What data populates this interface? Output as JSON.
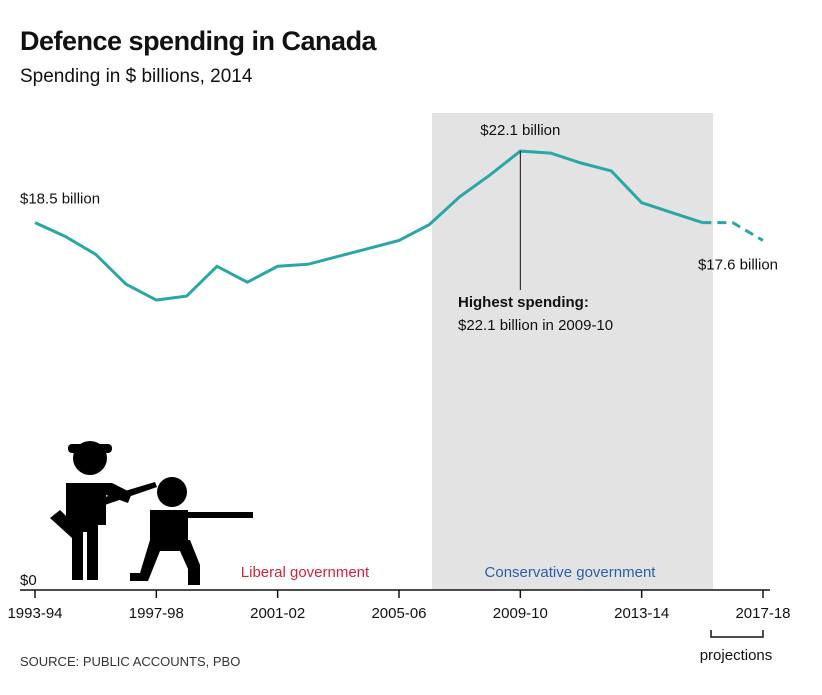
{
  "chart_data": {
    "type": "line",
    "title": "Defence spending in Canada",
    "subtitle": "Spending in $ billions, 2014",
    "source": "SOURCE: PUBLIC ACCOUNTS, PBO",
    "categories": [
      "1993-94",
      null,
      null,
      null,
      "1997-98",
      null,
      null,
      null,
      "2001-02",
      null,
      null,
      null,
      "2005-06",
      null,
      null,
      null,
      "2009-10",
      null,
      null,
      null,
      "2013-14",
      null,
      null,
      null,
      "2017-18"
    ],
    "series": [
      {
        "name": "Defence spending",
        "color": "#2aa6a6",
        "values": [
          18.5,
          17.8,
          16.9,
          15.4,
          14.6,
          14.8,
          16.3,
          15.5,
          16.3,
          16.4,
          16.8,
          17.2,
          17.6,
          18.4,
          19.8,
          20.9,
          22.1,
          22.0,
          21.5,
          21.1,
          19.5,
          19.0,
          18.5,
          18.5,
          17.6
        ],
        "value_labels": [
          "$18.5 billion",
          null,
          null,
          null,
          null,
          null,
          null,
          null,
          null,
          null,
          null,
          null,
          null,
          null,
          null,
          null,
          "$22.1 billion",
          null,
          null,
          null,
          null,
          null,
          null,
          null,
          "$17.6 billion"
        ]
      }
    ],
    "ylim": [
      0,
      25
    ],
    "yticks": [
      {
        "value": 0,
        "label": "$0"
      }
    ],
    "annotations": {
      "highest_title": "Highest spending:",
      "highest_text": "$22.1 billion in 2009-10",
      "liberal": "Liberal government",
      "conservative": "Conservative government",
      "projections": "projections"
    }
  }
}
